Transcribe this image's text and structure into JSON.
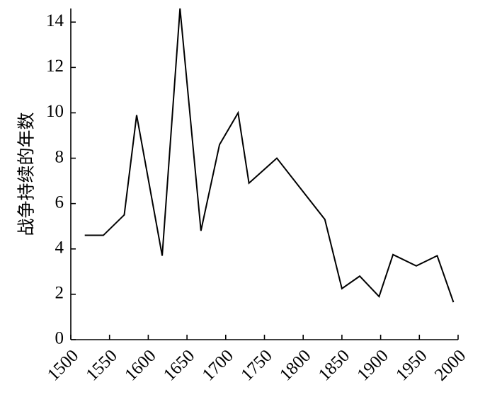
{
  "chart_data": {
    "type": "line",
    "y_label": "战争持续的年数",
    "x": [
      1518,
      1542,
      1569,
      1585,
      1618,
      1641,
      1668,
      1692,
      1716,
      1730,
      1766,
      1828,
      1850,
      1873,
      1898,
      1916,
      1946,
      1973,
      1994
    ],
    "values": [
      4.6,
      4.6,
      5.5,
      9.9,
      3.7,
      14.6,
      4.8,
      8.6,
      10.0,
      6.9,
      8.0,
      5.3,
      2.25,
      2.8,
      1.9,
      3.75,
      3.25,
      3.7,
      1.65
    ],
    "color": "#000000",
    "xlim": [
      1500,
      2000
    ],
    "xticks": [
      1500,
      1550,
      1600,
      1650,
      1700,
      1750,
      1800,
      1850,
      1900,
      1950,
      2000
    ],
    "ylim": [
      0,
      14.6
    ],
    "yticks": [
      0,
      2,
      4,
      6,
      8,
      10,
      12,
      14
    ]
  }
}
